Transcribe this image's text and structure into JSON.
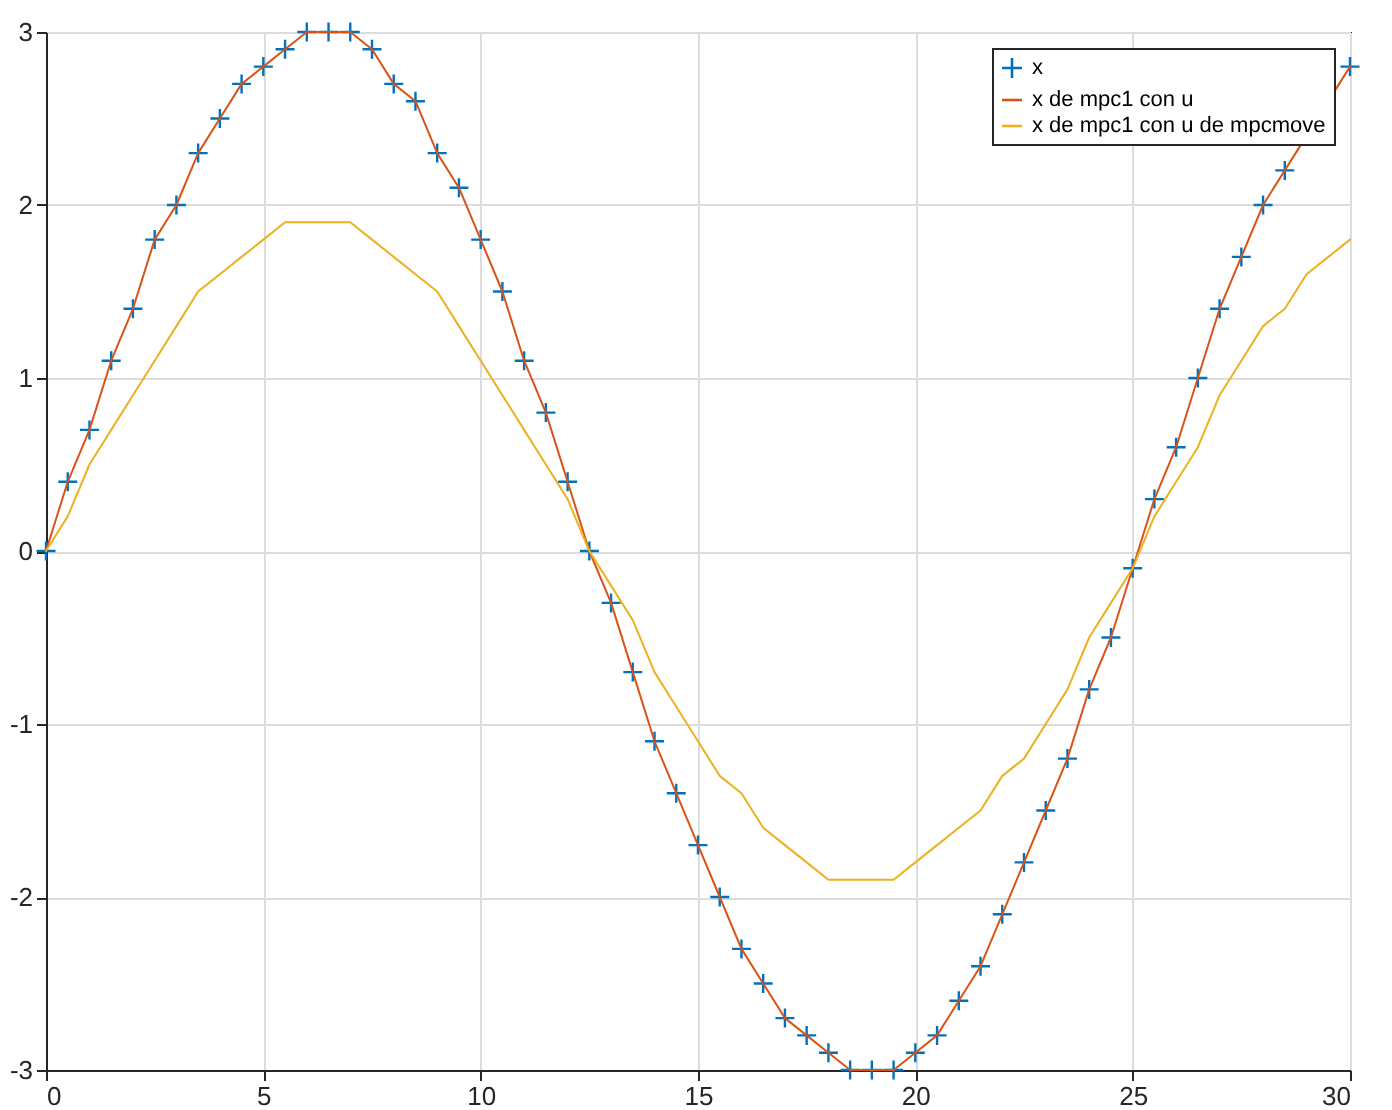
{
  "chart_data": {
    "type": "line",
    "xlim": [
      0,
      30
    ],
    "ylim": [
      -3,
      3
    ],
    "xticks": [
      0,
      5,
      10,
      15,
      20,
      25,
      30
    ],
    "yticks": [
      -3,
      -2,
      -1,
      0,
      1,
      2,
      3
    ],
    "grid": true,
    "legend": "top right",
    "x": [
      0,
      0.5,
      1,
      1.5,
      2,
      2.5,
      3,
      3.5,
      4,
      4.5,
      5,
      5.5,
      6,
      6.5,
      7,
      7.5,
      8,
      8.5,
      9,
      9.5,
      10,
      10.5,
      11,
      11.5,
      12,
      12.5,
      13,
      13.5,
      14,
      14.5,
      15,
      15.5,
      16,
      16.5,
      17,
      17.5,
      18,
      18.5,
      19,
      19.5,
      20,
      20.5,
      21,
      21.5,
      22,
      22.5,
      23,
      23.5,
      24,
      24.5,
      25,
      25.5,
      26,
      26.5,
      27,
      27.5,
      28,
      28.5,
      29,
      29.5,
      30
    ],
    "series": [
      {
        "name": "x",
        "type": "scatter",
        "marker": "cross",
        "color": "#0072bd",
        "values": [
          0,
          0.4,
          0.7,
          1.1,
          1.4,
          1.8,
          2.0,
          2.3,
          2.5,
          2.7,
          2.8,
          2.9,
          3.0,
          3.0,
          3.0,
          2.9,
          2.7,
          2.6,
          2.3,
          2.1,
          1.8,
          1.5,
          1.1,
          0.8,
          0.4,
          0.0,
          -0.3,
          -0.7,
          -1.1,
          -1.4,
          -1.7,
          -2.0,
          -2.3,
          -2.5,
          -2.7,
          -2.8,
          -2.9,
          -3.0,
          -3.0,
          -3.0,
          -2.9,
          -2.8,
          -2.6,
          -2.4,
          -2.1,
          -1.8,
          -1.5,
          -1.2,
          -0.8,
          -0.5,
          -0.1,
          0.3,
          0.6,
          1.0,
          1.4,
          1.7,
          2.0,
          2.2,
          null,
          null,
          2.8
        ]
      },
      {
        "name": "x de mpc1 con u",
        "type": "line",
        "line_style": "solid",
        "color": "#d95319",
        "values": [
          0,
          0.4,
          0.7,
          1.1,
          1.4,
          1.8,
          2.0,
          2.3,
          2.5,
          2.7,
          2.8,
          2.9,
          3.0,
          3.0,
          3.0,
          2.9,
          2.7,
          2.6,
          2.3,
          2.1,
          1.8,
          1.5,
          1.1,
          0.8,
          0.4,
          0.0,
          -0.3,
          -0.7,
          -1.1,
          -1.4,
          -1.7,
          -2.0,
          -2.3,
          -2.5,
          -2.7,
          -2.8,
          -2.9,
          -3.0,
          -3.0,
          -3.0,
          -2.9,
          -2.8,
          -2.6,
          -2.4,
          -2.1,
          -1.8,
          -1.5,
          -1.2,
          -0.8,
          -0.5,
          -0.1,
          0.3,
          0.6,
          1.0,
          1.4,
          1.7,
          2.0,
          2.2,
          null,
          null,
          2.8
        ]
      },
      {
        "name": "x de mpc1 con u de mpcmove",
        "type": "line",
        "line_style": "solid",
        "color": "#edb120",
        "values": [
          0,
          0.2,
          0.5,
          0.7,
          0.9,
          1.1,
          1.3,
          1.5,
          1.6,
          1.7,
          1.8,
          1.9,
          1.9,
          1.9,
          1.9,
          1.8,
          1.7,
          1.6,
          1.5,
          1.3,
          1.1,
          0.9,
          0.7,
          0.5,
          0.3,
          0.0,
          -0.2,
          -0.4,
          -0.7,
          -0.9,
          -1.1,
          -1.3,
          -1.4,
          -1.6,
          -1.7,
          -1.8,
          -1.9,
          -1.9,
          -1.9,
          -1.9,
          -1.8,
          -1.7,
          -1.6,
          -1.5,
          -1.3,
          -1.2,
          -1.0,
          -0.8,
          -0.5,
          -0.3,
          -0.1,
          0.2,
          0.4,
          0.6,
          0.9,
          1.1,
          1.3,
          1.4,
          1.6,
          1.7,
          1.8
        ]
      }
    ]
  }
}
